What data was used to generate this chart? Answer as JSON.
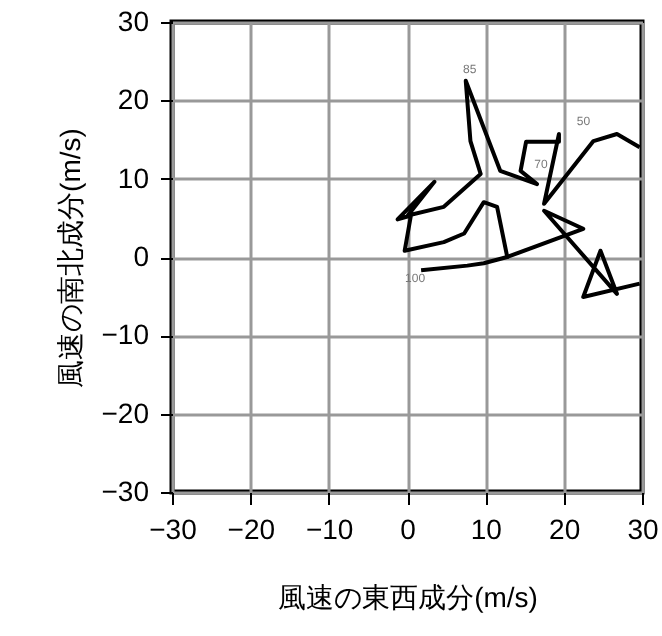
{
  "chart_data": {
    "type": "line",
    "xlabel": "風速の東西成分(m/s)",
    "ylabel": "風速の南北成分(m/s)",
    "xlim": [
      -30,
      30
    ],
    "ylim": [
      -30,
      30
    ],
    "xticks": [
      -30,
      -20,
      -10,
      0,
      10,
      20,
      30
    ],
    "yticks": [
      -30,
      -20,
      -10,
      0,
      10,
      20,
      30
    ],
    "grid": true,
    "marker": "none",
    "line_style": "solid",
    "series": [
      {
        "color": "#000000",
        "x": [
          1.8,
          7.7,
          9.8,
          12.8,
          11.5,
          9.8,
          7.3,
          4.7,
          -0.3,
          0.5,
          -1.2,
          3.5,
          0.1,
          4.7,
          9.4,
          8.1,
          7.5,
          11.9,
          16.6,
          14.5,
          15.2,
          19.4,
          19.4,
          17.5,
          23.8,
          26.8,
          29.7
        ],
        "values": [
          -1.7,
          -1.1,
          -0.8,
          0,
          6.4,
          7.0,
          3.0,
          1.9,
          0.8,
          5.3,
          4.8,
          9.6,
          5.3,
          6.4,
          10.6,
          14.8,
          22.5,
          11.0,
          9.3,
          11.0,
          14.7,
          14.7,
          15.7,
          6.8,
          14.8,
          15.7,
          14.0
        ]
      },
      {
        "color": "#000000",
        "x": [
          12.8,
          22.5,
          17.5,
          26.8,
          24.7,
          22.5,
          29.7
        ],
        "values": [
          0,
          3.6,
          5.9,
          -4.7,
          0.8,
          -5.1,
          -3.4
        ]
      }
    ],
    "annotations": [
      {
        "text": "85",
        "x": 7.5,
        "y": 22.5
      },
      {
        "text": "50",
        "x": 23.8,
        "y": 14.8
      },
      {
        "text": "70",
        "x": 16.6,
        "y": 9.3
      },
      {
        "text": "100",
        "x": 1.8,
        "y": -1.7
      }
    ]
  }
}
